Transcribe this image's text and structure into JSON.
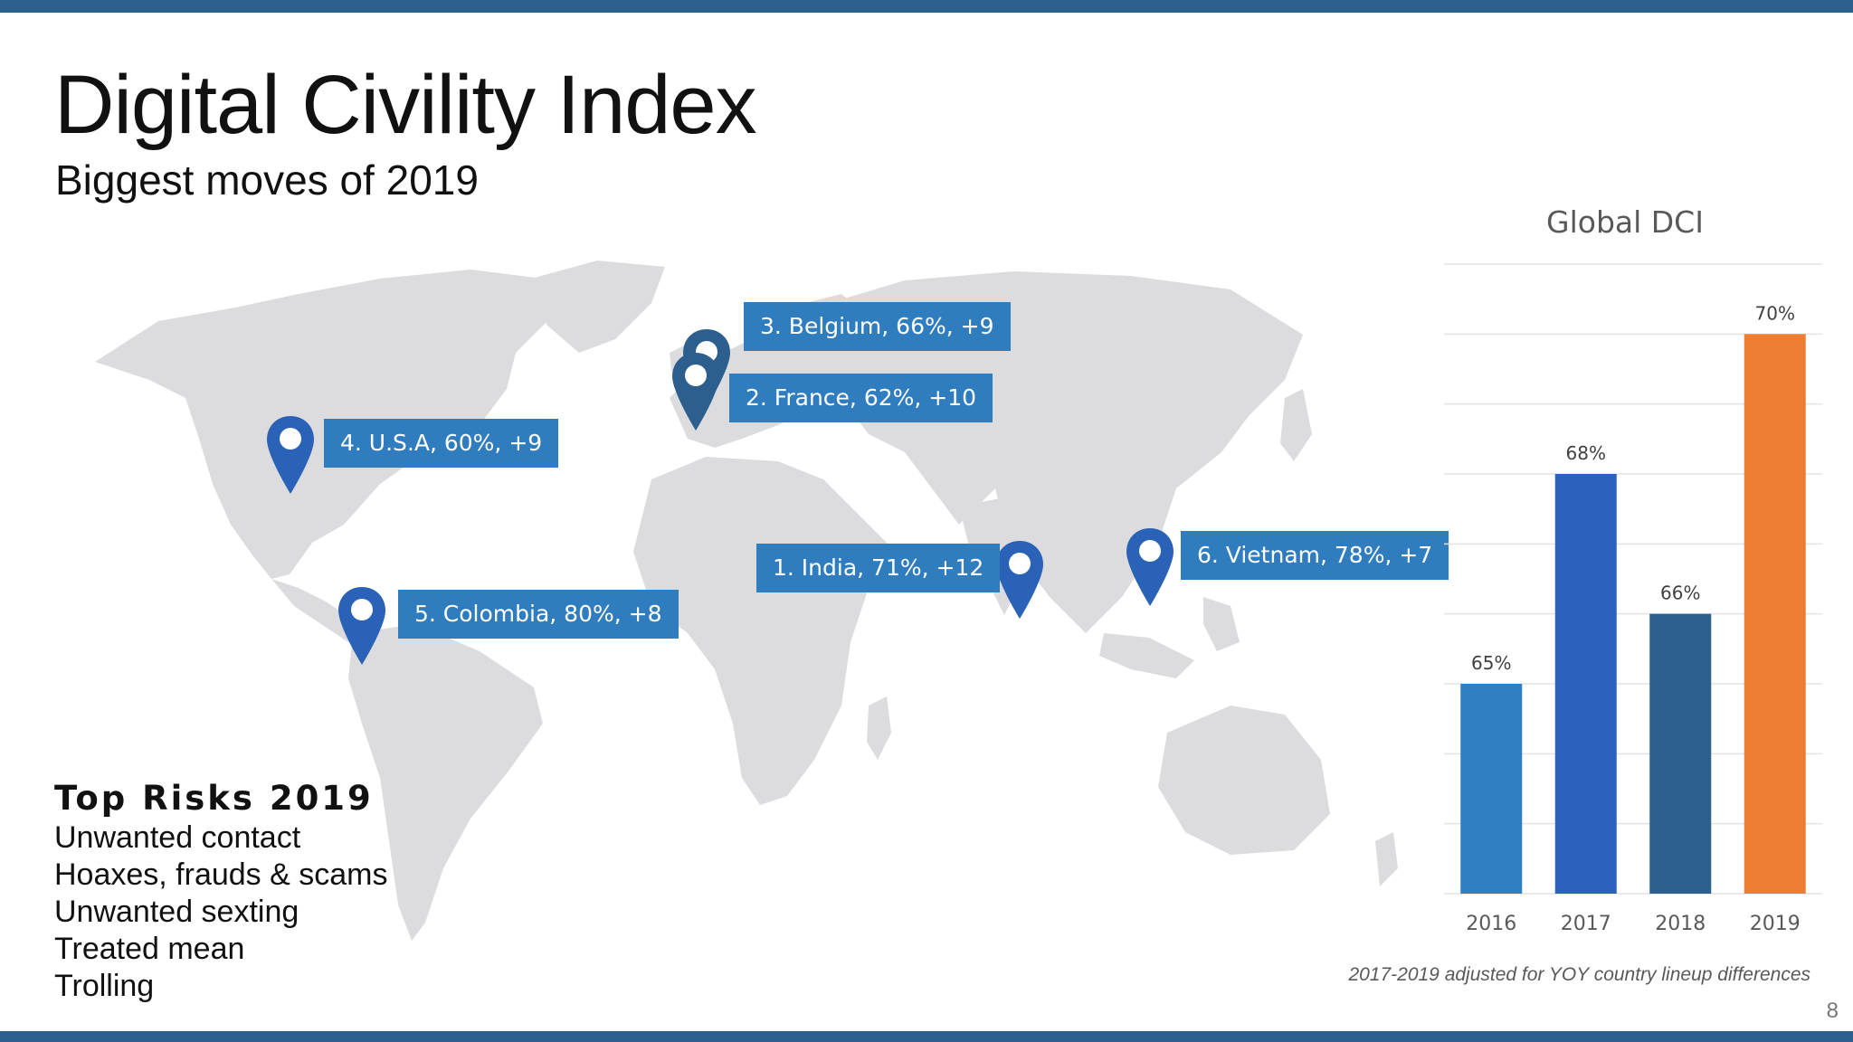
{
  "slide": {
    "title": "Digital Civility Index",
    "subtitle": "Biggest moves of 2019",
    "page_number": "8",
    "footnote": "2017-2019 adjusted for YOY country lineup differences",
    "colors": {
      "band": "#2d5f8e",
      "callout": "#2f7cbf",
      "pin": "#2a62b8",
      "pin_dark": "#2d5f8e",
      "land": "#dcdcde"
    }
  },
  "map": {
    "callouts": [
      {
        "text": "3. Belgium, 66%, +9",
        "pin_color": "#2d5f8e"
      },
      {
        "text": "2. France, 62%, +10",
        "pin_color": "#2d5f8e"
      },
      {
        "text": "4. U.S.A, 60%, +9",
        "pin_color": "#2a62b8"
      },
      {
        "text": "1. India, 71%, +12",
        "pin_color": "#2a62b8"
      },
      {
        "text": "6. Vietnam, 78%, +7",
        "pin_color": "#2a62b8"
      },
      {
        "text": "5. Colombia, 80%, +8",
        "pin_color": "#2a62b8"
      }
    ]
  },
  "risks": {
    "title": "Top Risks 2019",
    "items": [
      "Unwanted contact",
      "Hoaxes, frauds & scams",
      "Unwanted sexting",
      "Treated mean",
      "Trolling"
    ]
  },
  "chart_data": {
    "type": "bar",
    "title": "Global DCI",
    "categories": [
      "2016",
      "2017",
      "2018",
      "2019"
    ],
    "values": [
      65,
      68,
      66,
      70
    ],
    "value_labels": [
      "65%",
      "68%",
      "66%",
      "70%"
    ],
    "colors": [
      "#2e80c3",
      "#2a62be",
      "#2d5f8e",
      "#ed7d31"
    ],
    "ylim": [
      62,
      71
    ],
    "grid": true
  }
}
